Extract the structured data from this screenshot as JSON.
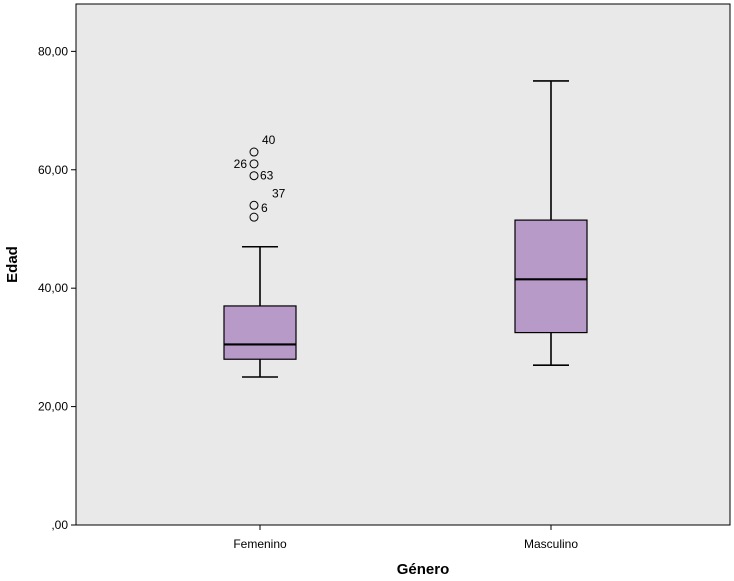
{
  "chart_data": {
    "type": "boxplot",
    "xlabel": "Género",
    "ylabel": "Edad",
    "ylim": [
      0,
      88
    ],
    "yticks": [
      {
        "value": 0,
        "label": ",00"
      },
      {
        "value": 20,
        "label": "20,00"
      },
      {
        "value": 40,
        "label": "40,00"
      },
      {
        "value": 60,
        "label": "60,00"
      },
      {
        "value": 80,
        "label": "80,00"
      }
    ],
    "categories": [
      "Femenino",
      "Masculino"
    ],
    "boxes": [
      {
        "category": "Femenino",
        "whisker_low": 25,
        "q1": 28,
        "median": 30.5,
        "q3": 37,
        "whisker_high": 47,
        "outliers": [
          {
            "value": 63,
            "label": "40"
          },
          {
            "value": 61,
            "label": "26"
          },
          {
            "value": 59,
            "label": "63"
          },
          {
            "value": 54,
            "label": "37"
          },
          {
            "value": 52,
            "label": "6"
          }
        ]
      },
      {
        "category": "Masculino",
        "whisker_low": 27,
        "q1": 32.5,
        "median": 41.5,
        "q3": 51.5,
        "whisker_high": 75,
        "outliers": []
      }
    ],
    "colors": {
      "plot_background": "#e9e9e9",
      "box_fill": "#b89ac9",
      "stroke": "#000000"
    }
  }
}
